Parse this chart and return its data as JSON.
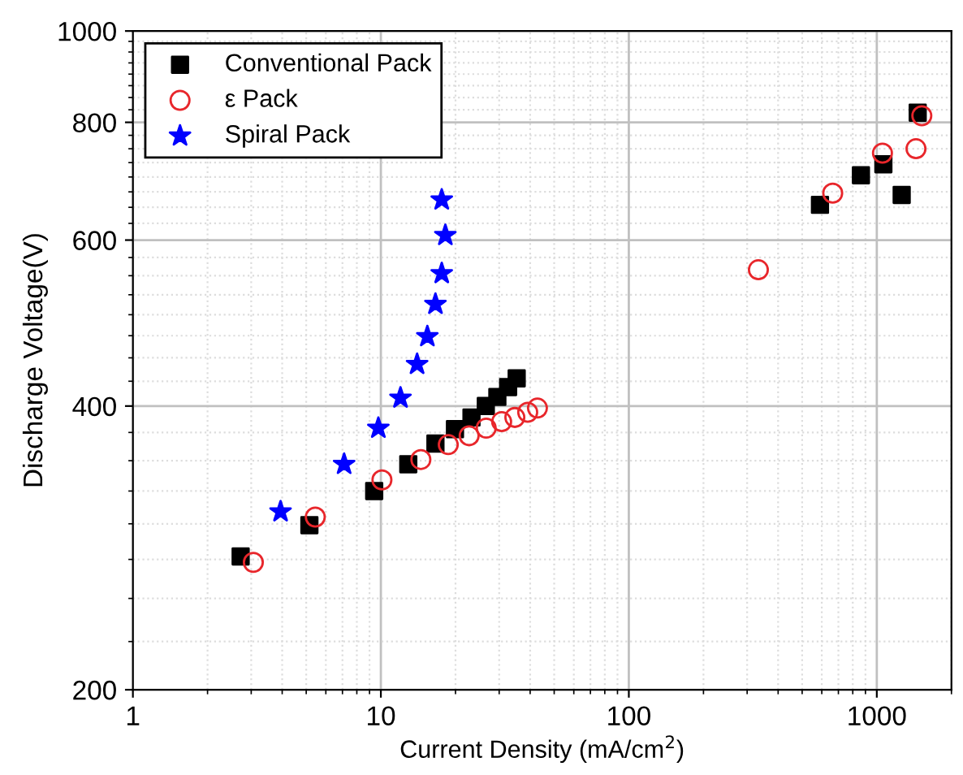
{
  "chart_data": {
    "type": "scatter",
    "xlabel": "Current Density (mA/cm$^{2}$)",
    "ylabel": "Discharge Voltage(V)",
    "log": "xy",
    "xlim": [
      1,
      2000
    ],
    "xticks": [
      1,
      10,
      100,
      1000
    ],
    "ylim": [
      200,
      1000
    ],
    "yticks": [
      200,
      400,
      600,
      800,
      1000
    ],
    "grid": true,
    "legend": "top left",
    "series": [
      {
        "name": "Conventional Pack",
        "color": "#000000",
        "marker": "square",
        "x": [
          2.72,
          5.15,
          9.4,
          12.9,
          16.6,
          19.9,
          23.2,
          26.5,
          29.5,
          32.6,
          35.3,
          590,
          863,
          1063,
          1260,
          1462
        ],
        "values": [
          277,
          299,
          325,
          347,
          365,
          378,
          389,
          400,
          409,
          419,
          428,
          654,
          703,
          722,
          670,
          819
        ]
      },
      {
        "name": "ε Pack",
        "color": "#e8262b",
        "marker": "circle",
        "x": [
          3.06,
          5.44,
          10.1,
          14.5,
          18.7,
          22.7,
          26.6,
          30.7,
          34.7,
          39.1,
          42.8,
          333,
          664,
          1054,
          1439,
          1519
        ],
        "values": [
          273,
          305,
          334,
          351,
          364,
          372,
          379,
          385,
          389,
          394,
          398,
          558,
          673,
          742,
          750,
          813
        ]
      },
      {
        "name": "Spiral Pack",
        "color": "#0000ff",
        "marker": "star",
        "x": [
          3.94,
          7.11,
          9.77,
          12.0,
          14.0,
          15.4,
          16.6,
          17.6,
          18.2,
          17.6
        ],
        "values": [
          309,
          347,
          379,
          408,
          443,
          474,
          513,
          553,
          607,
          662
        ]
      }
    ]
  }
}
